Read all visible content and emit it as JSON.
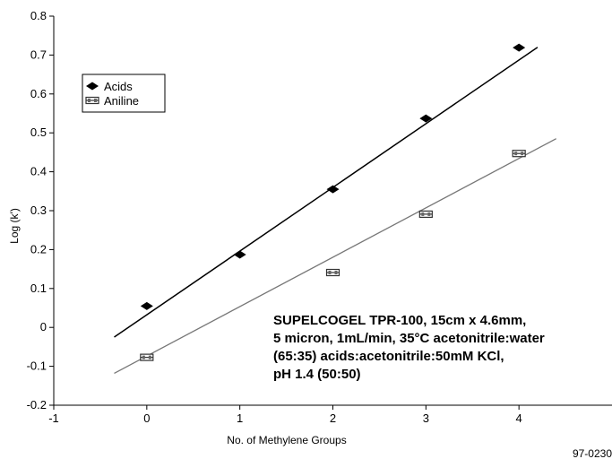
{
  "chart_data": {
    "type": "scatter",
    "xlabel": "No. of Methylene Groups",
    "ylabel": "Log (k')",
    "xlim": [
      -1,
      5
    ],
    "ylim": [
      -0.2,
      0.8
    ],
    "x_ticks": [
      "-1",
      "0",
      "1",
      "2",
      "3",
      "4"
    ],
    "y_ticks": [
      "-0.2",
      "-0.1",
      "0",
      "0.1",
      "0.2",
      "0.3",
      "0.4",
      "0.5",
      "0.6",
      "0.7",
      "0.8"
    ],
    "legend_position": "top-left",
    "series": [
      {
        "name": "Acids",
        "marker": "diamond",
        "color": "#000000",
        "x": [
          0,
          1,
          2,
          3,
          4
        ],
        "y": [
          0.055,
          0.187,
          0.355,
          0.537,
          0.719
        ],
        "fit_line": {
          "x": [
            -0.35,
            4.2
          ],
          "y": [
            -0.025,
            0.72
          ],
          "color": "#000000",
          "style": "solid"
        }
      },
      {
        "name": "Aniline",
        "marker": "square-bar",
        "color": "#555555",
        "x": [
          0,
          2,
          3,
          4
        ],
        "y": [
          -0.077,
          0.141,
          0.291,
          0.447
        ],
        "fit_line": {
          "x": [
            -0.35,
            4.4
          ],
          "y": [
            -0.118,
            0.485
          ],
          "color": "#777777",
          "style": "solid"
        }
      }
    ],
    "annotation": [
      "SUPELCOGEL TPR-100, 15cm x 4.6mm,",
      "5 micron, 1mL/min, 35°C acetonitrile:water",
      "(65:35) acids:acetonitrile:50mM KCl,",
      "pH 1.4 (50:50)"
    ],
    "figure_code": "97-0230"
  }
}
